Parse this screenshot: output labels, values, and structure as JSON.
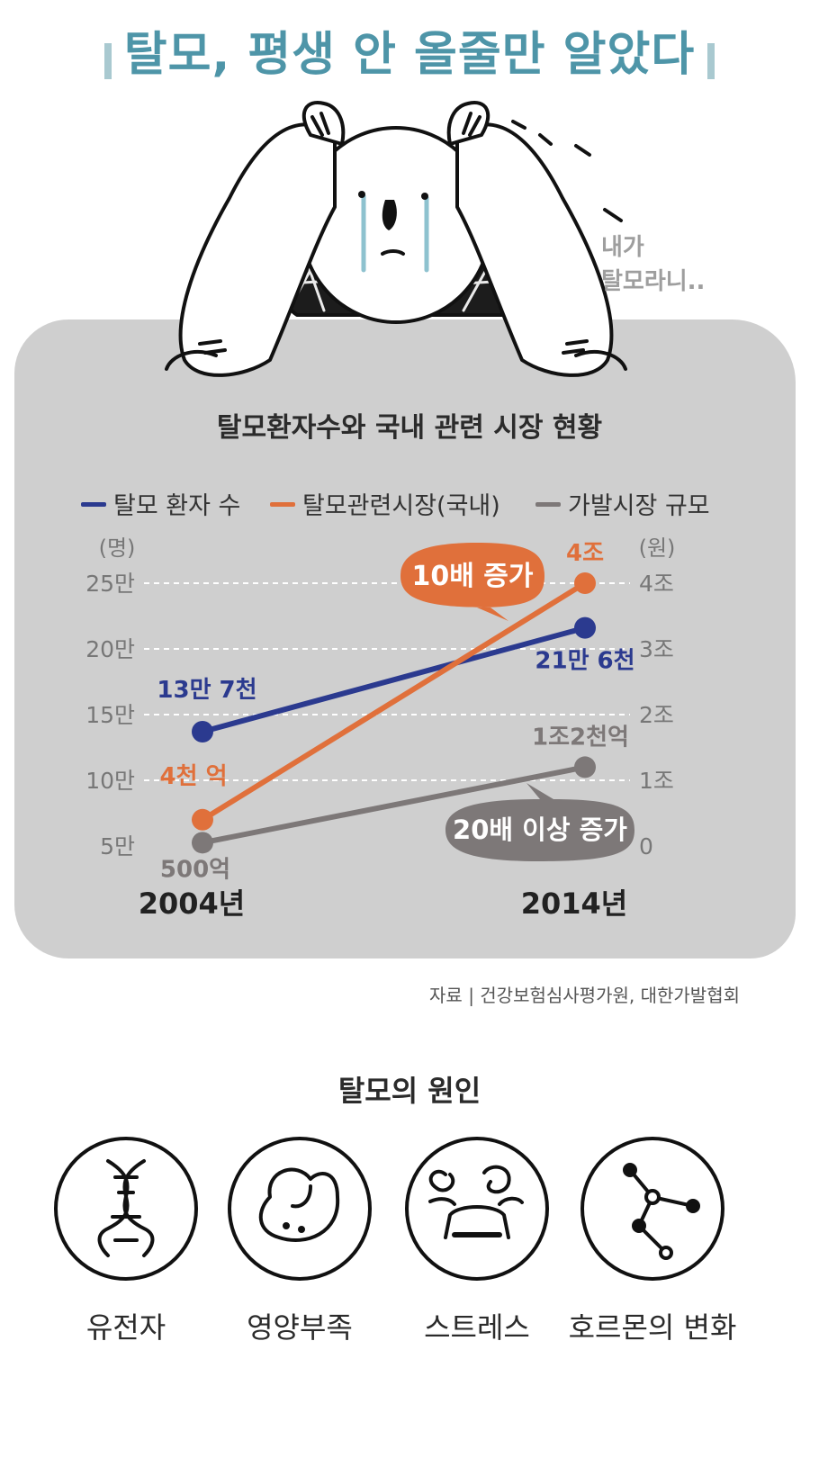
{
  "header": {
    "title": "탈모, 평생 안 올줄만 알았다"
  },
  "illustration": {
    "speech_line1": "내가",
    "speech_line2": "탈모라니.."
  },
  "chart_title": "탈모환자수와 국내 관련 시장 현황",
  "legend": [
    {
      "name": "탈모 환자 수",
      "color": "#2b3a8f"
    },
    {
      "name": "탈모관련시장(국내)",
      "color": "#e0703b"
    },
    {
      "name": "가발시장 규모",
      "color": "#7d7878"
    }
  ],
  "chart_data": {
    "type": "line",
    "x": [
      "2004년",
      "2014년"
    ],
    "left_axis": {
      "unit": "(명)",
      "ticks": [
        "25만",
        "20만",
        "15만",
        "10만",
        "5만"
      ],
      "values": [
        250000,
        200000,
        150000,
        100000,
        50000
      ]
    },
    "right_axis": {
      "unit": "(원)",
      "ticks": [
        "4조",
        "3조",
        "2조",
        "1조",
        "0"
      ],
      "values": [
        4,
        3,
        2,
        1,
        0
      ]
    },
    "grid": true,
    "series": [
      {
        "name": "탈모 환자 수",
        "axis": "left",
        "values": [
          137000,
          216000
        ],
        "labels": [
          "13만 7천",
          "21만 6천"
        ],
        "color": "#2b3a8f"
      },
      {
        "name": "탈모관련시장(국내)",
        "axis": "right",
        "values": [
          0.4,
          4
        ],
        "labels": [
          "4천 억",
          "4조"
        ],
        "color": "#e0703b"
      },
      {
        "name": "가발시장 규모",
        "axis": "right",
        "values": [
          0.05,
          1.2
        ],
        "labels": [
          "500억",
          "1조2천억"
        ],
        "color": "#7d7878"
      }
    ],
    "annotations": [
      {
        "text": "10배 증가",
        "color": "#e0703b"
      },
      {
        "text": "20배 이상 증가",
        "color": "#7d7878"
      }
    ]
  },
  "source": "자료 | 건강보험심사평가원, 대한가발협회",
  "causes": {
    "title": "탈모의 원인",
    "items": [
      {
        "label": "유전자",
        "icon": "dna-icon"
      },
      {
        "label": "영양부족",
        "icon": "nutrition-bean-icon"
      },
      {
        "label": "스트레스",
        "icon": "stressed-face-icon"
      },
      {
        "label": "호르몬의 변화",
        "icon": "hormone-molecule-icon"
      }
    ]
  }
}
